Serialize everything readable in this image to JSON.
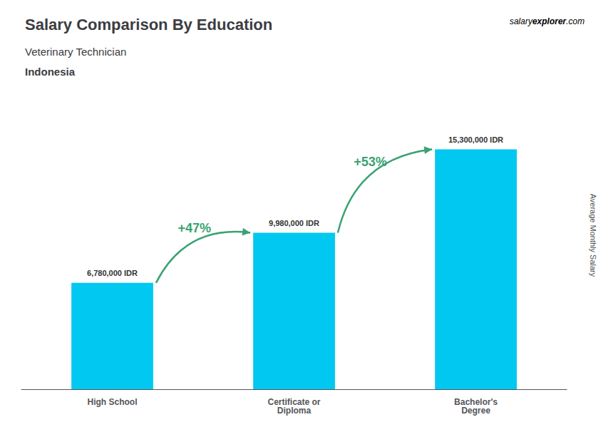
{
  "chart_data": {
    "type": "bar",
    "title": "Salary Comparison By Education",
    "subtitle": "Veterinary Technician",
    "country": "Indonesia",
    "watermark": [
      "salary",
      "explorer",
      ".com"
    ],
    "ylabel": "Average Monthly Salary",
    "categories": [
      "High School",
      "Certificate or\nDiploma",
      "Bachelor's\nDegree"
    ],
    "values": [
      6780000,
      9980000,
      15300000
    ],
    "value_labels": [
      "6,780,000 IDR",
      "9,980,000 IDR",
      "15,300,000 IDR"
    ],
    "data_labels": true,
    "color": "#00c8f0",
    "ylim": [
      0,
      18000000
    ],
    "grid": false,
    "tick_labels": "x",
    "annotations": [
      {
        "text": "+47%",
        "from": "High School",
        "to": "Certificate or\nDiploma",
        "color": "#3ba272"
      },
      {
        "text": "+53%",
        "from": "Certificate or\nDiploma",
        "to": "Bachelor's\nDegree",
        "color": "#3ba272"
      }
    ]
  }
}
